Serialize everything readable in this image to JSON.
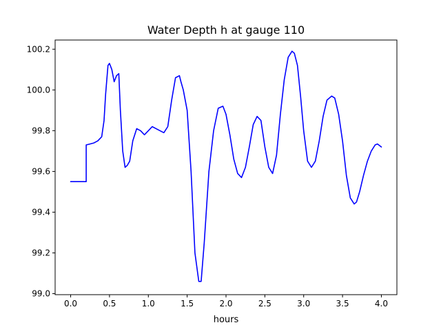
{
  "chart_data": {
    "type": "line",
    "title": "Water Depth h at gauge 110",
    "xlabel": "hours",
    "ylabel": "",
    "xlim": [
      -0.2,
      4.2
    ],
    "ylim": [
      98.995,
      100.245
    ],
    "x_ticks": [
      0.0,
      0.5,
      1.0,
      1.5,
      2.0,
      2.5,
      3.0,
      3.5,
      4.0
    ],
    "x_tick_labels": [
      "0.0",
      "0.5",
      "1.0",
      "1.5",
      "2.0",
      "2.5",
      "3.0",
      "3.5",
      "4.0"
    ],
    "y_ticks": [
      99.0,
      99.2,
      99.4,
      99.6,
      99.8,
      100.0,
      100.2
    ],
    "y_tick_labels": [
      "99.0",
      "99.2",
      "99.4",
      "99.6",
      "99.8",
      "100.0",
      "100.2"
    ],
    "grid": false,
    "series": [
      {
        "color": "#0000ff",
        "x": [
          0.0,
          0.1,
          0.2,
          0.2,
          0.25,
          0.3,
          0.35,
          0.4,
          0.43,
          0.45,
          0.48,
          0.5,
          0.53,
          0.56,
          0.59,
          0.62,
          0.64,
          0.67,
          0.7,
          0.73,
          0.76,
          0.8,
          0.85,
          0.9,
          0.95,
          1.0,
          1.05,
          1.1,
          1.15,
          1.2,
          1.25,
          1.3,
          1.35,
          1.4,
          1.42,
          1.45,
          1.5,
          1.55,
          1.6,
          1.65,
          1.68,
          1.72,
          1.78,
          1.84,
          1.9,
          1.96,
          2.0,
          2.05,
          2.1,
          2.15,
          2.2,
          2.25,
          2.3,
          2.35,
          2.4,
          2.45,
          2.5,
          2.55,
          2.6,
          2.65,
          2.7,
          2.75,
          2.8,
          2.85,
          2.88,
          2.92,
          2.96,
          3.0,
          3.05,
          3.1,
          3.15,
          3.2,
          3.25,
          3.3,
          3.36,
          3.4,
          3.45,
          3.5,
          3.55,
          3.6,
          3.65,
          3.68,
          3.72,
          3.77,
          3.82,
          3.87,
          3.92,
          3.95,
          4.0
        ],
        "y": [
          99.55,
          99.55,
          99.55,
          99.73,
          99.735,
          99.74,
          99.75,
          99.77,
          99.85,
          99.98,
          100.12,
          100.13,
          100.1,
          100.04,
          100.07,
          100.08,
          99.9,
          99.7,
          99.62,
          99.63,
          99.65,
          99.75,
          99.81,
          99.8,
          99.78,
          99.8,
          99.82,
          99.81,
          99.8,
          99.79,
          99.82,
          99.95,
          100.06,
          100.07,
          100.04,
          100.0,
          99.9,
          99.6,
          99.2,
          99.06,
          99.06,
          99.25,
          99.6,
          99.8,
          99.91,
          99.92,
          99.88,
          99.78,
          99.66,
          99.59,
          99.57,
          99.62,
          99.72,
          99.83,
          99.87,
          99.85,
          99.72,
          99.62,
          99.59,
          99.68,
          99.88,
          100.05,
          100.16,
          100.19,
          100.18,
          100.12,
          99.97,
          99.8,
          99.65,
          99.62,
          99.65,
          99.75,
          99.87,
          99.95,
          99.97,
          99.96,
          99.88,
          99.75,
          99.58,
          99.47,
          99.44,
          99.45,
          99.5,
          99.58,
          99.65,
          99.7,
          99.73,
          99.735,
          99.72
        ]
      }
    ]
  }
}
